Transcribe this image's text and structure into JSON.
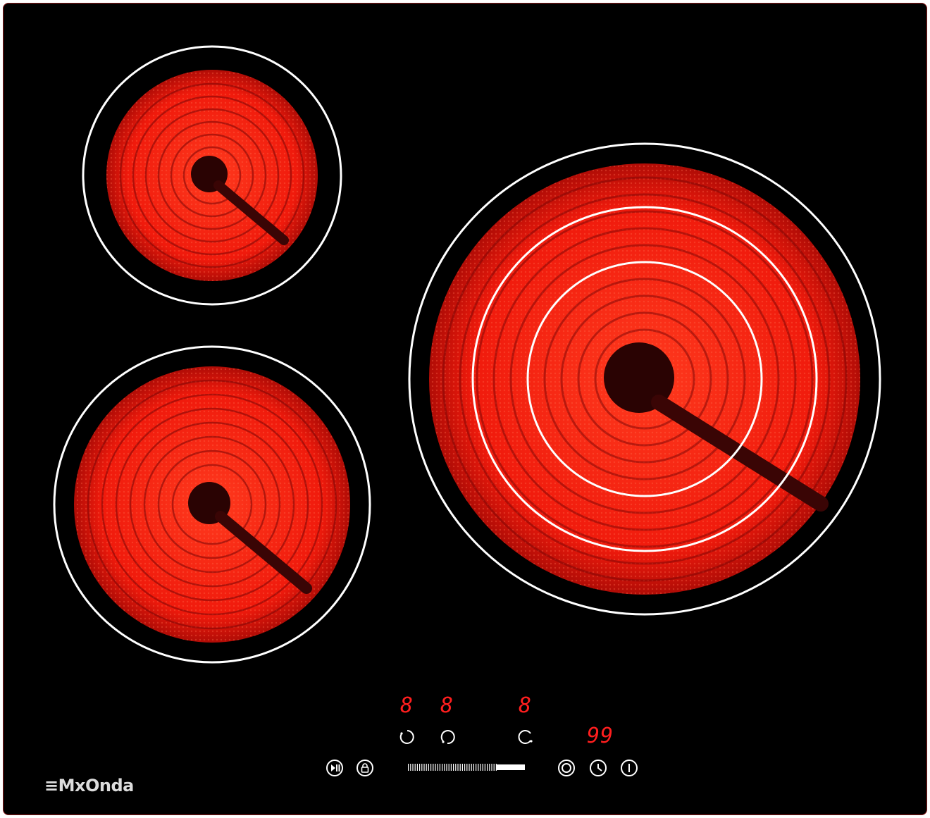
{
  "brand": "MxOnda",
  "colors": {
    "glass": "#000000",
    "element_glow": "#ff2a14",
    "element_dark": "#3a0505",
    "ring": "#ffffff",
    "display": "#ff1e1e"
  },
  "zones": [
    {
      "name": "rear-left",
      "level_display": "8"
    },
    {
      "name": "front-left",
      "level_display": "8"
    },
    {
      "name": "right-triple",
      "level_display": "8"
    }
  ],
  "timer_display": "99",
  "controls": {
    "zone_selectors": [
      "zone-select-front-left-icon",
      "zone-select-rear-left-icon",
      "zone-select-right-icon"
    ],
    "play_pause": "play-pause-icon",
    "lock": "lock-icon",
    "slider": "power-slider",
    "dual_zone": "dual-zone-icon",
    "timer": "clock-icon",
    "power": "power-icon"
  }
}
